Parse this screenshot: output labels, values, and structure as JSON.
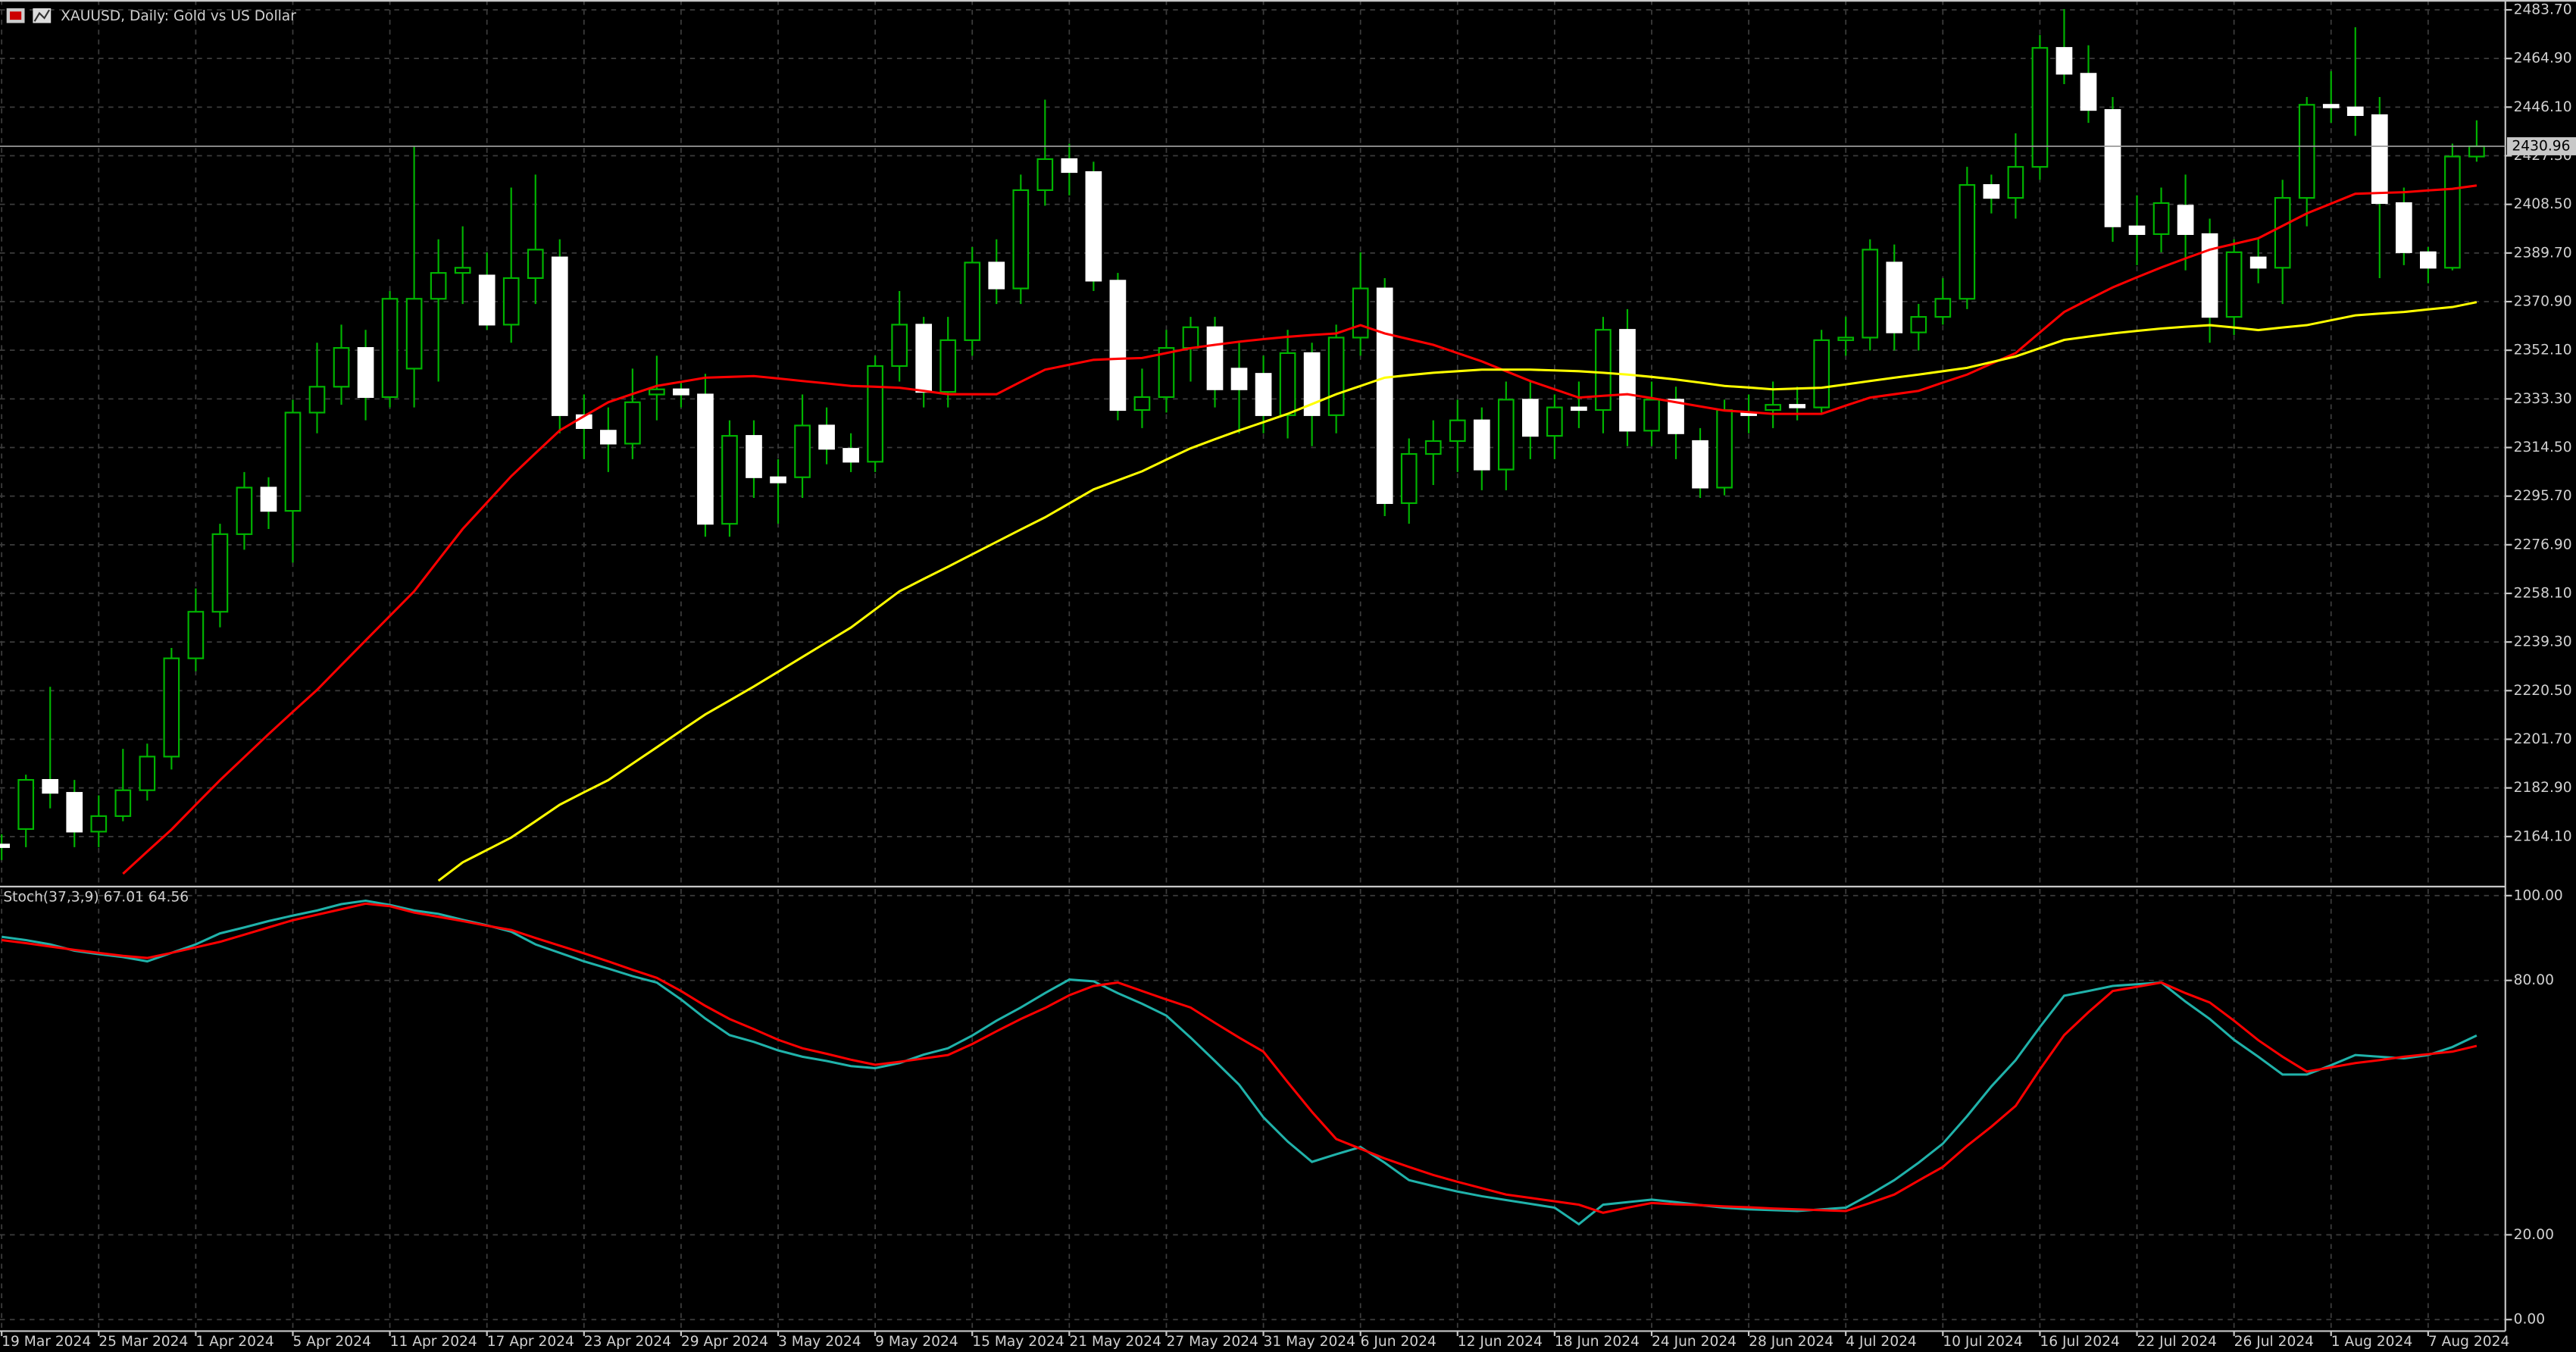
{
  "chart_data": [
    {
      "type": "candlestick",
      "title": "XAUUSD, Daily:  Gold vs US Dollar",
      "categories": [
        "19 Mar 2024",
        null,
        null,
        null,
        "25 Mar 2024",
        null,
        null,
        null,
        "1 Apr 2024",
        null,
        null,
        null,
        "5 Apr 2024",
        null,
        null,
        null,
        "11 Apr 2024",
        null,
        null,
        null,
        "17 Apr 2024",
        null,
        null,
        null,
        "23 Apr 2024",
        null,
        null,
        null,
        "29 Apr 2024",
        null,
        null,
        null,
        "3 May 2024",
        null,
        null,
        null,
        "9 May 2024",
        null,
        null,
        null,
        "15 May 2024",
        null,
        null,
        null,
        "21 May 2024",
        null,
        null,
        null,
        "27 May 2024",
        null,
        null,
        null,
        "31 May 2024",
        null,
        null,
        null,
        "6 Jun 2024",
        null,
        null,
        null,
        "12 Jun 2024",
        null,
        null,
        null,
        "18 Jun 2024",
        null,
        null,
        null,
        "24 Jun 2024",
        null,
        null,
        null,
        "28 Jun 2024",
        null,
        null,
        null,
        "4 Jul 2024",
        null,
        null,
        null,
        "10 Jul 2024",
        null,
        null,
        null,
        "16 Jul 2024",
        null,
        null,
        null,
        "22 Jul 2024",
        null,
        null,
        null,
        "26 Jul 2024",
        null,
        null,
        null,
        "1 Aug 2024",
        null,
        null,
        null,
        "7 Aug 2024",
        null,
        null
      ],
      "open": [
        2161,
        2167,
        2186,
        2181,
        2166,
        2172,
        2182,
        2195,
        2233,
        2251,
        2281,
        2299,
        2290,
        2328,
        2338,
        2353,
        2334,
        2345,
        2372,
        2382,
        2381,
        2362,
        2380,
        2388,
        2327,
        2321,
        2316,
        2335,
        2337,
        2335,
        2285,
        2319,
        2303,
        2303,
        2323,
        2314,
        2309,
        2346,
        2362,
        2336,
        2356,
        2386,
        2376,
        2414,
        2426,
        2421,
        2379,
        2329,
        2334,
        2353,
        2361,
        2345,
        2343,
        2327,
        2351,
        2327,
        2357,
        2376,
        2293,
        2312,
        2317,
        2325,
        2306,
        2333,
        2319,
        2330,
        2329,
        2360,
        2321,
        2333,
        2317,
        2299,
        2328,
        2329,
        2331,
        2330,
        2356,
        2357,
        2386,
        2359,
        2365,
        2372,
        2416,
        2411,
        2423,
        2469,
        2459,
        2445,
        2400,
        2397,
        2408,
        2397,
        2365,
        2388,
        2384,
        2411,
        2447,
        2446,
        2443,
        2409,
        2390,
        2384,
        2427
      ],
      "high": [
        2165,
        2188,
        2222,
        2186,
        2180,
        2198,
        2200,
        2237,
        2260,
        2285,
        2305,
        2303,
        2333,
        2355,
        2362,
        2360,
        2375,
        2431,
        2395,
        2400,
        2390,
        2415,
        2420,
        2395,
        2335,
        2330,
        2345,
        2350,
        2340,
        2343,
        2325,
        2325,
        2310,
        2335,
        2330,
        2320,
        2350,
        2375,
        2365,
        2365,
        2392,
        2395,
        2420,
        2449,
        2432,
        2425,
        2382,
        2345,
        2360,
        2365,
        2365,
        2355,
        2350,
        2360,
        2355,
        2362,
        2390,
        2380,
        2318,
        2325,
        2333,
        2330,
        2340,
        2340,
        2335,
        2340,
        2365,
        2368,
        2340,
        2338,
        2322,
        2333,
        2335,
        2340,
        2338,
        2360,
        2365,
        2395,
        2393,
        2370,
        2380,
        2423,
        2420,
        2436,
        2474,
        2484,
        2470,
        2450,
        2412,
        2415,
        2420,
        2403,
        2395,
        2395,
        2418,
        2450,
        2460,
        2477,
        2450,
        2415,
        2392,
        2432,
        2441
      ],
      "low": [
        2155,
        2160,
        2175,
        2160,
        2160,
        2170,
        2178,
        2190,
        2228,
        2245,
        2275,
        2283,
        2270,
        2320,
        2331,
        2325,
        2330,
        2330,
        2340,
        2370,
        2360,
        2355,
        2370,
        2320,
        2310,
        2305,
        2310,
        2325,
        2330,
        2280,
        2280,
        2295,
        2285,
        2295,
        2308,
        2305,
        2305,
        2340,
        2330,
        2330,
        2350,
        2370,
        2370,
        2408,
        2412,
        2375,
        2325,
        2322,
        2328,
        2340,
        2330,
        2320,
        2320,
        2318,
        2315,
        2320,
        2350,
        2288,
        2285,
        2300,
        2305,
        2298,
        2298,
        2310,
        2310,
        2322,
        2320,
        2315,
        2315,
        2310,
        2295,
        2296,
        2320,
        2322,
        2325,
        2328,
        2350,
        2352,
        2352,
        2352,
        2362,
        2368,
        2405,
        2403,
        2418,
        2455,
        2440,
        2394,
        2385,
        2390,
        2383,
        2355,
        2358,
        2378,
        2370,
        2400,
        2440,
        2435,
        2380,
        2385,
        2378,
        2383,
        2425
      ],
      "close": [
        2160,
        2186,
        2181,
        2166,
        2172,
        2182,
        2195,
        2233,
        2251,
        2281,
        2299,
        2290,
        2328,
        2338,
        2353,
        2334,
        2372,
        2372,
        2382,
        2384,
        2362,
        2380,
        2391,
        2327,
        2322,
        2316,
        2332,
        2337,
        2335,
        2285,
        2319,
        2303,
        2301,
        2323,
        2314,
        2309,
        2346,
        2362,
        2336,
        2356,
        2386,
        2376,
        2414,
        2426,
        2421,
        2379,
        2329,
        2334,
        2353,
        2361,
        2337,
        2337,
        2327,
        2351,
        2327,
        2357,
        2376,
        2293,
        2312,
        2317,
        2325,
        2306,
        2333,
        2319,
        2330,
        2329,
        2360,
        2321,
        2333,
        2320,
        2299,
        2329,
        2327,
        2331,
        2330,
        2356,
        2357,
        2391,
        2359,
        2365,
        2372,
        2416,
        2411,
        2423,
        2469,
        2459,
        2445,
        2400,
        2397,
        2409,
        2397,
        2365,
        2390,
        2384,
        2411,
        2447,
        2446,
        2443,
        2409,
        2390,
        2384,
        2427,
        2430.96
      ],
      "bull_color": "#00b400",
      "bear_color": "#ffffff",
      "overlays": [
        {
          "color": "#ff0000",
          "values": [
            null,
            null,
            null,
            null,
            null,
            2149.7,
            2158.3,
            2166.8,
            2176.4,
            2185.9,
            2194.8,
            2203.7,
            2212.3,
            2220.8,
            2230.4,
            2239.9,
            2249.4,
            2258.9,
            2271.0,
            2283.0,
            2293.2,
            2303.4,
            2312.3,
            2321.1,
            2326.6,
            2332.0,
            2335.2,
            2338.3,
            2339.9,
            2341.5,
            2341.8,
            2342.1,
            2341.2,
            2340.2,
            2339.3,
            2338.3,
            2338.0,
            2337.6,
            2336.4,
            2335.1,
            2335.1,
            2335.1,
            2339.9,
            2344.6,
            2346.5,
            2348.4,
            2348.8,
            2349.1,
            2351.0,
            2352.9,
            2354.2,
            2355.4,
            2356.4,
            2357.3,
            2358.0,
            2358.6,
            2361.8,
            2358.6,
            2356.4,
            2354.2,
            2351.0,
            2347.8,
            2344.0,
            2340.2,
            2337.0,
            2333.8,
            2334.5,
            2335.1,
            2333.6,
            2332.0,
            2330.4,
            2328.8,
            2328.2,
            2327.5,
            2327.5,
            2327.5,
            2330.7,
            2333.8,
            2335.1,
            2336.4,
            2339.6,
            2342.7,
            2346.9,
            2351.0,
            2359.0,
            2366.9,
            2371.7,
            2376.4,
            2380.3,
            2384.1,
            2387.6,
            2391.0,
            2393.2,
            2395.4,
            2400.2,
            2405.0,
            2408.8,
            2412.6,
            2412.9,
            2413.2,
            2413.9,
            2414.5,
            2415.8
          ]
        },
        {
          "color": "#ffff00",
          "values": [
            null,
            null,
            null,
            null,
            null,
            null,
            null,
            null,
            null,
            null,
            null,
            null,
            null,
            null,
            null,
            null,
            null,
            null,
            2147.0,
            2154.1,
            2158.9,
            2163.7,
            2170.0,
            2176.4,
            2181.2,
            2185.9,
            2192.3,
            2198.6,
            2205.0,
            2211.3,
            2216.7,
            2222.1,
            2227.8,
            2233.5,
            2239.2,
            2244.9,
            2251.9,
            2258.9,
            2263.7,
            2268.4,
            2273.2,
            2278.0,
            2282.8,
            2287.5,
            2292.9,
            2298.3,
            2301.8,
            2305.3,
            2309.8,
            2314.2,
            2317.7,
            2321.1,
            2324.3,
            2327.5,
            2331.3,
            2335.1,
            2338.3,
            2341.5,
            2342.5,
            2343.4,
            2344.0,
            2344.6,
            2344.6,
            2344.6,
            2344.3,
            2344.0,
            2343.4,
            2342.7,
            2341.8,
            2340.8,
            2339.6,
            2338.3,
            2337.7,
            2337.0,
            2337.3,
            2337.6,
            2338.9,
            2340.2,
            2341.5,
            2342.7,
            2344.0,
            2345.3,
            2347.5,
            2349.7,
            2352.9,
            2356.1,
            2357.4,
            2358.6,
            2359.6,
            2360.5,
            2361.2,
            2361.8,
            2360.9,
            2359.9,
            2360.9,
            2361.8,
            2363.7,
            2365.6,
            2366.3,
            2366.9,
            2367.9,
            2368.8,
            2370.7
          ]
        }
      ],
      "last_price": 2430.96,
      "ylim": [
        2145.7,
        2487.5
      ],
      "yticks": [
        {
          "value": 2164.1,
          "label": "2164.10"
        },
        {
          "value": 2182.9,
          "label": "2182.90"
        },
        {
          "value": 2201.7,
          "label": "2201.70"
        },
        {
          "value": 2220.5,
          "label": "2220.50"
        },
        {
          "value": 2239.3,
          "label": "2239.30"
        },
        {
          "value": 2258.1,
          "label": "2258.10"
        },
        {
          "value": 2276.9,
          "label": "2276.90"
        },
        {
          "value": 2295.7,
          "label": "2295.70"
        },
        {
          "value": 2314.5,
          "label": "2314.50"
        },
        {
          "value": 2333.3,
          "label": "2333.30"
        },
        {
          "value": 2352.1,
          "label": "2352.10"
        },
        {
          "value": 2370.9,
          "label": "2370.90"
        },
        {
          "value": 2389.7,
          "label": "2389.70"
        },
        {
          "value": 2408.5,
          "label": "2408.50"
        },
        {
          "value": 2427.3,
          "label": "2427.30"
        },
        {
          "value": 2446.1,
          "label": "2446.10"
        },
        {
          "value": 2464.9,
          "label": "2464.90"
        },
        {
          "value": 2483.7,
          "label": "2483.70"
        }
      ],
      "grid": true
    },
    {
      "type": "line",
      "title": "Stoch(37,3,9) 67.01 64.56",
      "series": [
        {
          "color": "#20b2aa",
          "values": [
            90.3,
            89.5,
            88.5,
            87,
            86.2,
            85.5,
            84.5,
            86.5,
            88.5,
            91.1,
            92.5,
            94,
            95.3,
            96.5,
            98,
            98.8,
            97.8,
            96.5,
            95.7,
            94.3,
            93,
            91.5,
            88.5,
            86.5,
            84.5,
            82.8,
            81,
            79.5,
            75.5,
            71,
            67.1,
            65.5,
            63.5,
            62,
            61,
            59.8,
            59.3,
            60.5,
            62.5,
            64,
            67,
            70.5,
            73.6,
            77,
            80.2,
            79.8,
            77,
            74.5,
            71.7,
            66.5,
            61,
            55.4,
            47.7,
            42,
            37.2,
            39,
            40.7,
            37,
            32.9,
            31.5,
            30.2,
            29.1,
            28.2,
            27.3,
            26.4,
            22.5,
            27.1,
            27.7,
            28.3,
            27.7,
            27,
            26.4,
            26,
            25.8,
            25.6,
            26.0,
            26.4,
            29.5,
            32.9,
            37,
            41.5,
            48,
            55,
            61.2,
            69,
            76.4,
            77.5,
            78.7,
            79.1,
            79.5,
            75,
            70.9,
            66,
            62,
            57.8,
            57.8,
            60,
            62.4,
            62,
            61.6,
            62.4,
            64.3,
            67.01
          ]
        },
        {
          "color": "#ff0000",
          "values": [
            89.5,
            88.8,
            88,
            87.2,
            86.5,
            85.8,
            85.3,
            86.5,
            87.8,
            89.1,
            90.8,
            92.5,
            94.2,
            95.5,
            96.8,
            98.1,
            97.5,
            96,
            95,
            94,
            92.9,
            91.9,
            90,
            88.2,
            86.4,
            84.5,
            82.5,
            80.6,
            77.5,
            74,
            70.9,
            68.5,
            66,
            64,
            62.7,
            61.3,
            60.1,
            60.8,
            61.6,
            62.4,
            65,
            68,
            70.9,
            73.5,
            76.5,
            78.7,
            79.5,
            77.5,
            75.5,
            73.6,
            70,
            66.5,
            63.2,
            56,
            49,
            42.6,
            40.3,
            38,
            36,
            34.1,
            32.5,
            31,
            29.5,
            28.7,
            27.9,
            27.1,
            25.2,
            26.4,
            27.5,
            27.2,
            27,
            26.7,
            26.5,
            26.2,
            26,
            25.8,
            25.6,
            27.5,
            29.5,
            32.8,
            36,
            41,
            45.5,
            50.4,
            59,
            67.1,
            72.5,
            77.5,
            78.5,
            79.5,
            77,
            74.8,
            70.5,
            65.9,
            62,
            58.5,
            59.5,
            60.5,
            61.2,
            62,
            62.6,
            63.2,
            64.56
          ]
        }
      ],
      "ylim": [
        0,
        100
      ],
      "yticks": [
        {
          "value": 100,
          "label": "100.00"
        },
        {
          "value": 80,
          "label": "80.00"
        },
        {
          "value": 20,
          "label": "20.00"
        },
        {
          "value": 0,
          "label": "0.00"
        }
      ],
      "grid": true
    }
  ]
}
